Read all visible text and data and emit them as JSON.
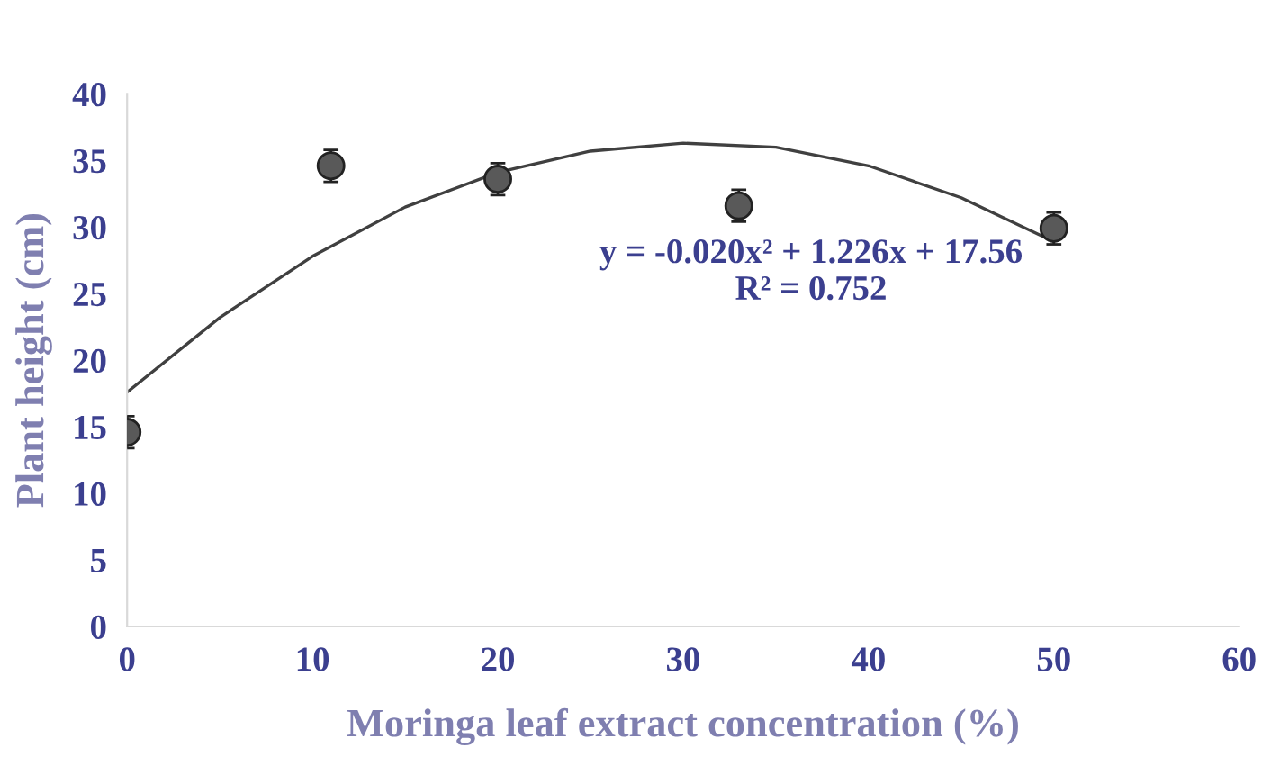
{
  "chart_data": {
    "type": "scatter",
    "xlabel": "Moringa leaf extract concentration (%)",
    "ylabel": "Plant height (cm)",
    "xlim": [
      0,
      60
    ],
    "xticks": [
      0,
      10,
      20,
      30,
      40,
      50,
      60
    ],
    "ylim": [
      0,
      40
    ],
    "yticks": [
      0,
      5,
      10,
      15,
      20,
      25,
      30,
      35,
      40
    ],
    "grid": false,
    "legend": false,
    "series": [
      {
        "color": "#595959",
        "marker": "circle",
        "x": [
          0,
          11,
          20,
          33,
          50
        ],
        "values": [
          14.6,
          34.6,
          33.6,
          31.6,
          29.9
        ],
        "errors": [
          1.2,
          1.2,
          1.2,
          1.2,
          1.2
        ]
      },
      {
        "type": "line",
        "color": "#404040",
        "marker": "none",
        "x": [
          0,
          5,
          10,
          15,
          20,
          25,
          30,
          35,
          40,
          45,
          50
        ],
        "values": [
          17.6,
          23.2,
          27.8,
          31.5,
          34.1,
          35.7,
          36.3,
          36.0,
          34.6,
          32.2,
          28.9
        ]
      }
    ],
    "annotations": [
      "y = -0.020x² + 1.226x + 17.56\nR² = 0.752"
    ]
  }
}
